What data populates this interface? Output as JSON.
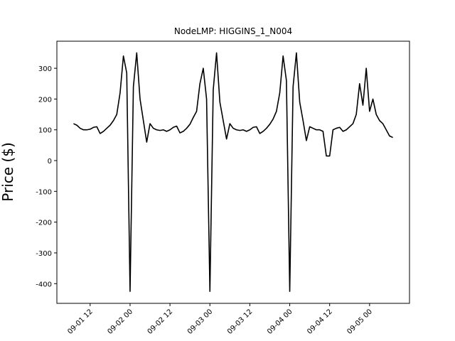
{
  "chart_data": {
    "type": "line",
    "title": "NodeLMP: HIGGINS_1_N004",
    "y_label": "Price ($)",
    "x": [
      "09-01 07",
      "09-01 08",
      "09-01 09",
      "09-01 10",
      "09-01 11",
      "09-01 12",
      "09-01 13",
      "09-01 14",
      "09-01 15",
      "09-01 16",
      "09-01 17",
      "09-01 18",
      "09-01 19",
      "09-01 20",
      "09-01 21",
      "09-01 22",
      "09-01 23",
      "09-02 00",
      "09-02 01",
      "09-02 02",
      "09-02 03",
      "09-02 04",
      "09-02 05",
      "09-02 06",
      "09-02 07",
      "09-02 08",
      "09-02 09",
      "09-02 10",
      "09-02 11",
      "09-02 12",
      "09-02 13",
      "09-02 14",
      "09-02 15",
      "09-02 16",
      "09-02 17",
      "09-02 18",
      "09-02 19",
      "09-02 20",
      "09-02 21",
      "09-02 22",
      "09-02 23",
      "09-03 00",
      "09-03 01",
      "09-03 02",
      "09-03 03",
      "09-03 04",
      "09-03 05",
      "09-03 06",
      "09-03 07",
      "09-03 08",
      "09-03 09",
      "09-03 10",
      "09-03 11",
      "09-03 12",
      "09-03 13",
      "09-03 14",
      "09-03 15",
      "09-03 16",
      "09-03 17",
      "09-03 18",
      "09-03 19",
      "09-03 20",
      "09-03 21",
      "09-03 22",
      "09-03 23",
      "09-04 00",
      "09-04 01",
      "09-04 02",
      "09-04 03",
      "09-04 04",
      "09-04 05",
      "09-04 06",
      "09-04 07",
      "09-04 08",
      "09-04 09",
      "09-04 10",
      "09-04 11",
      "09-04 12",
      "09-04 13",
      "09-04 14",
      "09-04 15",
      "09-04 16",
      "09-04 17",
      "09-04 18",
      "09-04 19",
      "09-04 20",
      "09-04 21",
      "09-04 22",
      "09-04 23",
      "09-05 00",
      "09-05 01",
      "09-05 02",
      "09-05 03",
      "09-05 04",
      "09-05 05",
      "09-05 06",
      "09-05 07"
    ],
    "series": [
      {
        "color": "#000000",
        "values": [
          120,
          115,
          105,
          100,
          100,
          102,
          108,
          110,
          88,
          95,
          105,
          115,
          130,
          150,
          220,
          340,
          285,
          -425,
          240,
          350,
          200,
          130,
          60,
          120,
          105,
          100,
          98,
          100,
          95,
          100,
          108,
          112,
          90,
          95,
          105,
          118,
          140,
          160,
          250,
          300,
          200,
          -425,
          230,
          350,
          190,
          130,
          70,
          120,
          105,
          100,
          98,
          100,
          95,
          100,
          108,
          110,
          88,
          95,
          105,
          118,
          135,
          160,
          220,
          340,
          260,
          -425,
          240,
          350,
          190,
          130,
          65,
          110,
          105,
          100,
          100,
          95,
          15,
          15,
          100,
          105,
          108,
          95,
          100,
          110,
          120,
          150,
          250,
          180,
          300,
          160,
          200,
          150,
          130,
          120,
          100,
          80,
          75
        ]
      }
    ],
    "xlim": [
      "09-01 02",
      "09-05 12"
    ],
    "xticks": [
      "09-01 12",
      "09-02 00",
      "09-02 12",
      "09-03 00",
      "09-03 12",
      "09-04 00",
      "09-04 12",
      "09-05 00"
    ],
    "ylim": [
      -464,
      388
    ],
    "yticks": [
      -400,
      -300,
      -200,
      -100,
      0,
      100,
      200,
      300
    ]
  }
}
